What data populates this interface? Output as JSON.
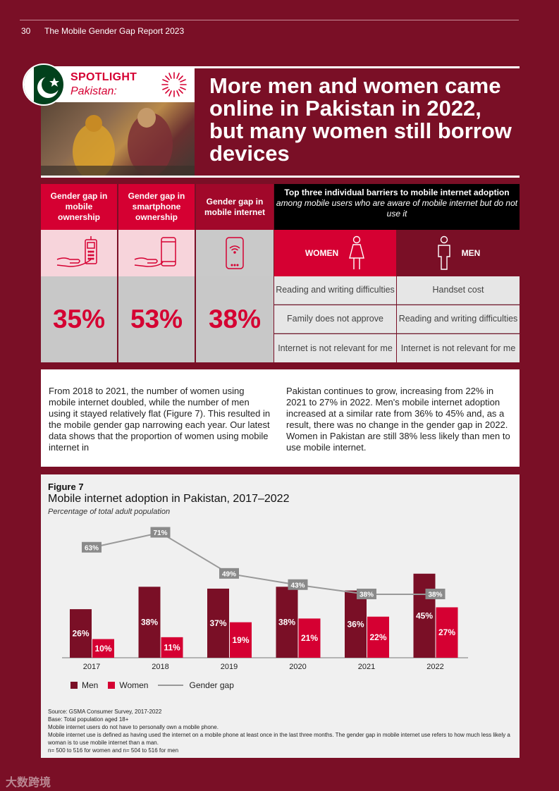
{
  "header": {
    "page_number": "30",
    "report_title": "The Mobile Gender Gap Report 2023"
  },
  "spotlight": {
    "label": "SPOTLIGHT",
    "country": "Pakistan:",
    "headline": "More men and women came online in Pakistan in 2022, but many women still borrow devices"
  },
  "stats": [
    {
      "label": "Gender gap in mobile ownership",
      "value": "35%",
      "icon": "hand-feature-phone-icon"
    },
    {
      "label": "Gender gap in smartphone ownership",
      "value": "53%",
      "icon": "hand-smartphone-icon"
    },
    {
      "label": "Gender gap in mobile internet",
      "value": "38%",
      "icon": "phone-wifi-icon"
    }
  ],
  "barriers": {
    "title": "Top three individual barriers to mobile internet adoption",
    "subtitle": "among mobile users who are aware of mobile internet but do not use it",
    "women_label": "WOMEN",
    "men_label": "MEN",
    "women": [
      "Reading and writing difficulties",
      "Family does not approve",
      "Internet is not relevant for me"
    ],
    "men": [
      "Handset cost",
      "Reading and writing difficulties",
      "Internet is not relevant for me"
    ]
  },
  "body_text": {
    "col1": "From 2018 to 2021, the number of women using mobile internet doubled, while the number of men using it stayed relatively flat (Figure 7). This resulted in the mobile gender gap narrowing each year. Our latest data shows that the proportion of women using mobile internet in",
    "col2": "Pakistan continues to grow, increasing from 22% in 2021 to 27% in 2022. Men's mobile internet adoption increased at a similar rate from 36% to 45% and, as a result, there was no change in the gender gap in 2022. Women in Pakistan are still 38% less likely than men to use mobile internet."
  },
  "figure": {
    "label": "Figure 7",
    "title": "Mobile internet adoption in Pakistan, 2017–2022",
    "subtitle": "Percentage of total adult population",
    "legend": {
      "men": "Men",
      "women": "Women",
      "gap": "Gender gap"
    },
    "notes": [
      "Source: GSMA Consumer Survey, 2017-2022",
      "Base: Total population aged 18+",
      "Mobile internet users do not have to personally own a mobile phone.",
      "Mobile internet use is defined as having used the internet on a mobile phone at least once in the last three months. The gender gap in mobile internet use refers to how much less likely a woman is to use mobile internet than a man.",
      "n= 500 to 516 for women and n= 504 to 516 for men"
    ]
  },
  "chart_data": {
    "type": "bar",
    "title": "Mobile internet adoption in Pakistan, 2017–2022",
    "subtitle": "Percentage of total adult population",
    "categories": [
      "2017",
      "2018",
      "2019",
      "2020",
      "2021",
      "2022"
    ],
    "series": [
      {
        "name": "Men",
        "type": "bar",
        "values": [
          26,
          38,
          37,
          38,
          36,
          45
        ],
        "labels": [
          "26%",
          "38%",
          "37%",
          "38%",
          "36%",
          "45%"
        ],
        "color": "#7a0f26"
      },
      {
        "name": "Women",
        "type": "bar",
        "values": [
          10,
          11,
          19,
          21,
          22,
          27
        ],
        "labels": [
          "10%",
          "11%",
          "19%",
          "21%",
          "22%",
          "27%"
        ],
        "color": "#d50032"
      },
      {
        "name": "Gender gap",
        "type": "line",
        "values": [
          63,
          71,
          49,
          43,
          38,
          38
        ],
        "labels": [
          "63%",
          "71%",
          "49%",
          "43%",
          "38%",
          "38%"
        ],
        "color": "#999999"
      }
    ],
    "ylim": [
      0,
      80
    ],
    "xlabel": "",
    "ylabel": ""
  },
  "colors": {
    "brand_dark": "#7a0f26",
    "brand_red": "#d50032",
    "grey_cell": "#c8c8c8"
  },
  "watermark": "大数跨境"
}
